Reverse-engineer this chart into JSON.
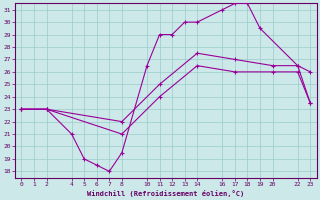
{
  "xlabel": "Windchill (Refroidissement éolien,°C)",
  "bg_color": "#cce8e8",
  "line_color": "#990099",
  "grid_color": "#99cccc",
  "axis_color": "#660066",
  "text_color": "#660066",
  "xlim": [
    -0.5,
    23.5
  ],
  "ylim": [
    17.5,
    31.5
  ],
  "xticks": [
    0,
    1,
    2,
    4,
    5,
    6,
    7,
    8,
    10,
    11,
    12,
    13,
    14,
    16,
    17,
    18,
    19,
    20,
    22,
    23
  ],
  "yticks": [
    18,
    19,
    20,
    21,
    22,
    23,
    24,
    25,
    26,
    27,
    28,
    29,
    30,
    31
  ],
  "s1x": [
    0,
    2,
    4,
    5,
    6,
    7,
    8,
    10,
    11,
    12,
    13,
    14,
    16,
    17,
    18,
    19,
    22,
    23
  ],
  "s1y": [
    23,
    23,
    21,
    19,
    18.5,
    18,
    19.5,
    26.5,
    29,
    29,
    30,
    30,
    31,
    31.5,
    31.5,
    29.5,
    26.5,
    26
  ],
  "s2x": [
    0,
    2,
    8,
    11,
    14,
    17,
    20,
    22,
    23
  ],
  "s2y": [
    23,
    23,
    22,
    25,
    27.5,
    27,
    26.5,
    26.5,
    23.5
  ],
  "s3x": [
    0,
    2,
    8,
    11,
    14,
    17,
    20,
    22,
    23
  ],
  "s3y": [
    23,
    23,
    21,
    24,
    26.5,
    26,
    26,
    26,
    23.5
  ],
  "marker": "+"
}
